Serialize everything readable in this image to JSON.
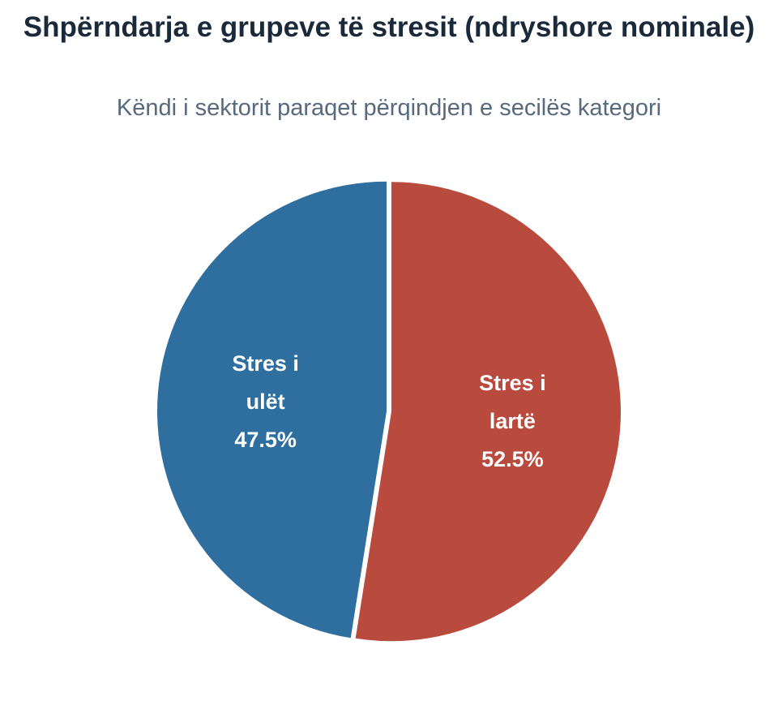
{
  "chart_data": {
    "type": "pie",
    "title": "Shpërndarja e grupeve të stresit (ndryshore nominale)",
    "subtitle": "Këndi i sektorit paraqet përqindjen e secilës kategori",
    "slices": [
      {
        "label_lines": [
          "Stres i",
          "lartë"
        ],
        "value": 52.5,
        "value_label": "52.5%",
        "color": "#b94a3e"
      },
      {
        "label_lines": [
          "Stres i",
          "ulët"
        ],
        "value": 47.5,
        "value_label": "47.5%",
        "color": "#2f6f9f"
      }
    ]
  }
}
